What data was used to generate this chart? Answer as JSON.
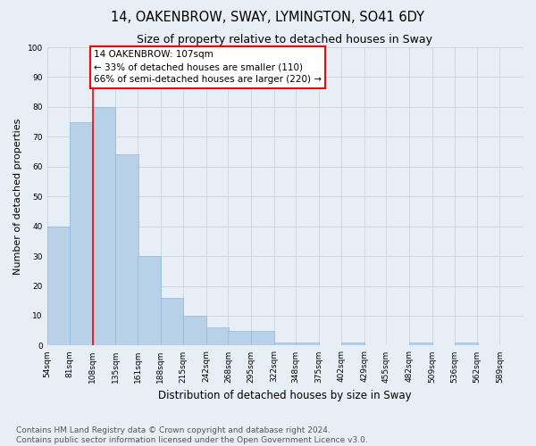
{
  "title": "14, OAKENBROW, SWAY, LYMINGTON, SO41 6DY",
  "subtitle": "Size of property relative to detached houses in Sway",
  "xlabel": "Distribution of detached houses by size in Sway",
  "ylabel": "Number of detached properties",
  "bins": [
    "54sqm",
    "81sqm",
    "108sqm",
    "135sqm",
    "161sqm",
    "188sqm",
    "215sqm",
    "242sqm",
    "268sqm",
    "295sqm",
    "322sqm",
    "348sqm",
    "375sqm",
    "402sqm",
    "429sqm",
    "455sqm",
    "482sqm",
    "509sqm",
    "536sqm",
    "562sqm",
    "589sqm"
  ],
  "bin_edges": [
    54,
    81,
    108,
    135,
    161,
    188,
    215,
    242,
    268,
    295,
    322,
    348,
    375,
    402,
    429,
    455,
    482,
    509,
    536,
    562,
    589
  ],
  "values": [
    40,
    75,
    80,
    64,
    30,
    16,
    10,
    6,
    5,
    5,
    1,
    1,
    0,
    1,
    0,
    0,
    1,
    0,
    1,
    0
  ],
  "bar_color": "#b8d0e8",
  "bar_edge_color": "#90b8d8",
  "red_line_x": 108,
  "annotation_text": "14 OAKENBROW: 107sqm\n← 33% of detached houses are smaller (110)\n66% of semi-detached houses are larger (220) →",
  "annotation_box_color": "white",
  "annotation_box_edge_color": "red",
  "ylim": [
    0,
    100
  ],
  "grid_color": "#c8d4e0",
  "background_color": "#e8eef6",
  "footer_text": "Contains HM Land Registry data © Crown copyright and database right 2024.\nContains public sector information licensed under the Open Government Licence v3.0.",
  "title_fontsize": 10.5,
  "subtitle_fontsize": 9,
  "annotation_fontsize": 7.5,
  "footer_fontsize": 6.5,
  "ylabel_fontsize": 8,
  "xlabel_fontsize": 8.5,
  "tick_fontsize": 6.5
}
